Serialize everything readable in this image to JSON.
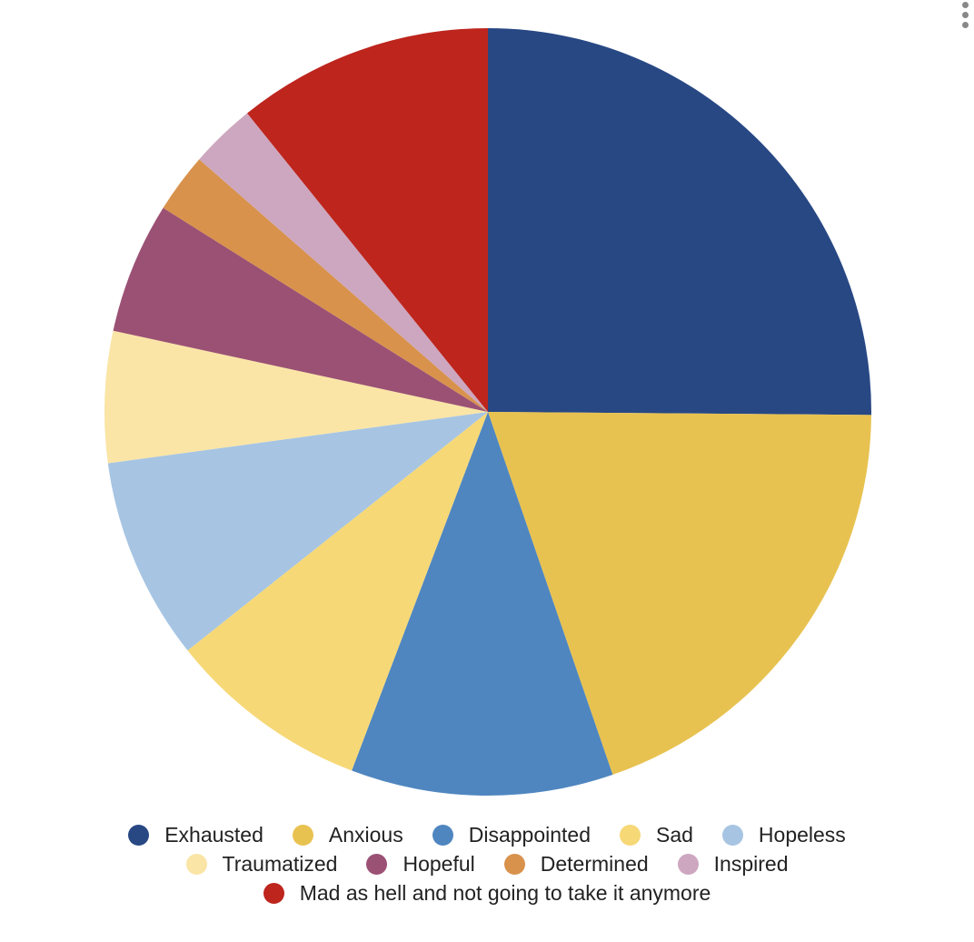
{
  "chart_data": {
    "type": "pie",
    "categories": [
      "Exhausted",
      "Anxious",
      "Disappointed",
      "Sad",
      "Hopeless",
      "Traumatized",
      "Hopeful",
      "Determined",
      "Inspired",
      "Mad as hell and not going to take it anymore"
    ],
    "values": [
      25,
      19.5,
      11,
      8.5,
      8.5,
      5.5,
      5.5,
      2.5,
      2.75,
      10.75
    ],
    "colors": [
      "#284884",
      "#E8C250",
      "#4F86C0",
      "#F6D877",
      "#A7C5E3",
      "#FAE5A6",
      "#9B5174",
      "#D8924C",
      "#CDA7BF",
      "#BD251D"
    ],
    "start_angle": "12 o'clock",
    "direction": "clockwise",
    "legend_position": "bottom"
  },
  "legend": {
    "rows": [
      [
        0,
        1,
        2,
        3,
        4
      ],
      [
        5,
        6,
        7,
        8
      ],
      [
        9
      ]
    ]
  },
  "menu": {
    "icon": "more-vertical-icon"
  }
}
